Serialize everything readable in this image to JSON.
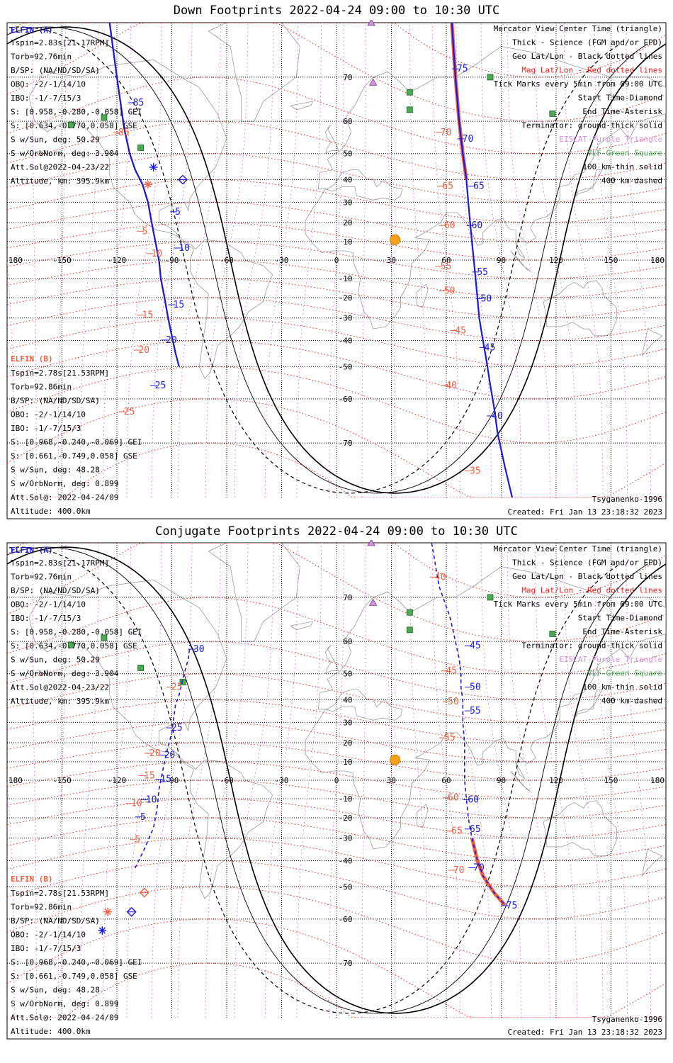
{
  "panels": [
    {
      "title": "Down Footprints 2022-04-24 09:00 to 10:30 UTC",
      "elfin_a": {
        "header": "ELFIN (A)",
        "lines": [
          "Tspin=2.83s[21.17RPM]",
          "Torb=92.76min",
          "B/SP: (NA/ND/SD/SA)",
          "OBO: -2/-1/14/10",
          "IBO: -1/-7/15/3",
          "S: [0.958,-0.280,-0.058] GEI",
          "S: [0.634,-0.770,0.058] GSE",
          "S w/Sun, deg: 50.29",
          "S w/OrbNorm, deg: 3.904",
          "Att.Sol@2022-04-23/22",
          "Altitude, km: 395.9km"
        ]
      },
      "elfin_b": {
        "header": "ELFIN (B)",
        "lines": [
          "Tspin=2.78s[21.53RPM]",
          "Torb=92.86min",
          "B/SP: (NA/ND/SD/SA)",
          "OBO: -2/-1/14/10",
          "IBO: -1/-7/15/3",
          "S: [0.968,-0.240,-0.069] GEI",
          "S: [0.661,-0.749,0.058] GSE",
          "S w/Sun, deg: 48.28",
          "S w/OrbNorm, deg: 0.899",
          "Att.Sol@: 2022-04-24/09",
          "Altitude: 400.0km"
        ]
      },
      "legend": [
        {
          "text": "Mercator View Center Time (triangle)",
          "color": "#000000"
        },
        {
          "text": "Thick - Science (FGM and/or EPD)",
          "color": "#000000"
        },
        {
          "text": "Geo Lat/Lon - Black dotted lines",
          "color": "#000000"
        },
        {
          "text": "Mag Lat/Lon - Red dotted lines",
          "color": "#e8221f"
        },
        {
          "text": "Tick Marks every 5min from 09:00 UTC",
          "color": "#000000"
        },
        {
          "text": "Start Time-Diamond",
          "color": "#000000"
        },
        {
          "text": "End Time-Asterisk",
          "color": "#000000"
        },
        {
          "text": "Terminator: ground-thick solid",
          "color": "#000000"
        },
        {
          "text": "EISCAT-Purple Triangle",
          "color": "#d48fe0"
        },
        {
          "text": "VLF-Green Square",
          "color": "#4caa55"
        },
        {
          "text": "100 km-thin solid",
          "color": "#000000"
        },
        {
          "text": "400 km-dashed",
          "color": "#000000"
        }
      ],
      "model": "Tsyganenko-1996",
      "created": "Created: Fri Jan 13 23:18:32 2023",
      "track_a": {
        "points": [
          [
            -86,
            -50
          ],
          [
            -88,
            -45
          ],
          [
            -90,
            -38
          ],
          [
            -92,
            -30
          ],
          [
            -94,
            -20
          ],
          [
            -96,
            -10
          ],
          [
            -97,
            0
          ],
          [
            -99,
            10
          ],
          [
            -101,
            20
          ],
          [
            -103,
            30
          ],
          [
            -106,
            38
          ],
          [
            -110,
            44
          ],
          [
            -113,
            50
          ],
          [
            -116,
            58
          ],
          [
            -120,
            70
          ],
          [
            -124,
            80
          ]
        ],
        "labels": [
          [
            "5",
            -89,
            24
          ],
          [
            "10",
            -87,
            5
          ],
          [
            "15",
            -90,
            -25
          ],
          [
            "20",
            -94,
            -41
          ],
          [
            "25",
            -100,
            -57
          ],
          [
            "85",
            -112,
            64
          ]
        ],
        "color": "#1a1adb"
      },
      "track_b": {
        "points": [
          [
            -88,
            -45
          ],
          [
            -90,
            -38
          ],
          [
            -92,
            -30
          ],
          [
            -94,
            -20
          ],
          [
            -96,
            -10
          ],
          [
            -97,
            0
          ],
          [
            -99,
            10
          ],
          [
            -101,
            20
          ],
          [
            -103,
            30
          ],
          [
            -106,
            38
          ],
          [
            -110,
            44
          ],
          [
            -113,
            50
          ],
          [
            -116,
            58
          ],
          [
            -120,
            70
          ],
          [
            -124,
            80
          ]
        ],
        "labels": [
          [
            "5",
            -107,
            14
          ],
          [
            "10",
            -102,
            2
          ],
          [
            "15",
            -107,
            -30
          ],
          [
            "20",
            -109,
            -45
          ],
          [
            "25",
            -117,
            -64
          ],
          [
            "85",
            -120,
            56
          ]
        ],
        "color": "#f06040"
      },
      "track_a2": {
        "points": [
          [
            63,
            80
          ],
          [
            65,
            70
          ],
          [
            67,
            60
          ],
          [
            69,
            50
          ],
          [
            71,
            40
          ],
          [
            72,
            30
          ],
          [
            73,
            20
          ],
          [
            74,
            10
          ],
          [
            75,
            0
          ],
          [
            76,
            -10
          ],
          [
            77,
            -20
          ],
          [
            78,
            -30
          ],
          [
            80,
            -40
          ],
          [
            82,
            -48
          ],
          [
            84,
            -56
          ],
          [
            86,
            -62
          ],
          [
            88,
            -68
          ],
          [
            92,
            -74
          ],
          [
            96,
            -78
          ]
        ],
        "labels": [
          [
            "75",
            65,
            71
          ],
          [
            "70",
            68,
            54
          ],
          [
            "65",
            74,
            36
          ],
          [
            "60",
            73,
            17
          ],
          [
            "55",
            76,
            -8
          ],
          [
            "50",
            78,
            -22
          ],
          [
            "45",
            80,
            -44
          ],
          [
            "40",
            84,
            -65
          ]
        ],
        "color": "#1a1adb"
      },
      "track_b2": {
        "labels": [
          [
            "70",
            56,
            56
          ],
          [
            "65",
            57,
            36
          ],
          [
            "60",
            58,
            17
          ],
          [
            "55",
            56,
            -5
          ],
          [
            "50",
            58,
            -18
          ],
          [
            "45",
            64,
            -37
          ],
          [
            "40",
            59,
            -57
          ],
          [
            "35",
            72,
            -75
          ]
        ],
        "color": "#f06040"
      },
      "sun": [
        32,
        11
      ],
      "vlf": [
        [
          -127,
          61
        ],
        [
          -145,
          59
        ],
        [
          -107,
          52
        ],
        [
          84,
          70
        ],
        [
          40,
          67
        ],
        [
          40,
          63
        ],
        [
          118,
          62
        ]
      ],
      "eiscat": [
        [
          19,
          80
        ],
        [
          20,
          69
        ]
      ],
      "start_a": [
        -84,
        40
      ],
      "end_a": [
        -100,
        45
      ],
      "end_b": [
        -103,
        38
      ]
    },
    {
      "title": "Conjugate Footprints 2022-04-24 09:00 to 10:30 UTC",
      "elfin_a": {
        "header": "ELFIN (A)",
        "lines": [
          "Tspin=2.83s[21.17RPM]",
          "Torb=92.76min",
          "B/SP: (NA/ND/SD/SA)",
          "OBO: -2/-1/14/10",
          "IBO: -1/-7/15/3",
          "S: [0.958,-0.280,-0.058] GEI",
          "S: [0.634,-0.770,0.058] GSE",
          "S w/Sun, deg: 50.29",
          "S w/OrbNorm, deg: 3.904",
          "Att.Sol@2022-04-23/22",
          "Altitude, km: 395.9km"
        ]
      },
      "elfin_b": {
        "header": "ELFIN (B)",
        "lines": [
          "Tspin=2.78s[21.53RPM]",
          "Torb=92.86min",
          "B/SP: (NA/ND/SD/SA)",
          "OBO: -2/-1/14/10",
          "IBO: -1/-7/15/3",
          "S: [0.968,-0.240,-0.069] GEI",
          "S: [0.661,-0.749,0.058] GSE",
          "S w/Sun, deg: 48.28",
          "S w/OrbNorm, deg: 0.899",
          "Att.Sol@: 2022-04-24/09",
          "Altitude: 400.0km"
        ]
      },
      "legend": [
        {
          "text": "Mercator View Center Time (triangle)",
          "color": "#000000"
        },
        {
          "text": "Thick - Science (FGM and/or EPD)",
          "color": "#000000"
        },
        {
          "text": "Geo Lat/Lon - Black dotted lines",
          "color": "#000000"
        },
        {
          "text": "Mag Lat/Lon - Red dotted lines",
          "color": "#e8221f"
        },
        {
          "text": "Tick Marks every 5min from 09:00 UTC",
          "color": "#000000"
        },
        {
          "text": "Start Time-Diamond",
          "color": "#000000"
        },
        {
          "text": "End Time-Asterisk",
          "color": "#000000"
        },
        {
          "text": "Terminator: ground-thick solid",
          "color": "#000000"
        },
        {
          "text": "EISCAT-Purple Triangle",
          "color": "#d48fe0"
        },
        {
          "text": "VLF-Green Square",
          "color": "#4caa55"
        },
        {
          "text": "100 km-thin solid",
          "color": "#000000"
        },
        {
          "text": "400 km-dashed",
          "color": "#000000"
        }
      ],
      "model": "Tsyganenko-1996",
      "created": "Created: Fri Jan 13 23:18:32 2023",
      "track_a": {
        "points": [
          [
            -110,
            -43
          ],
          [
            -105,
            -35
          ],
          [
            -100,
            -25
          ],
          [
            -98,
            -15
          ],
          [
            -97,
            -5
          ],
          [
            -96,
            0
          ],
          [
            -95,
            5
          ],
          [
            -94,
            10
          ],
          [
            -92,
            18
          ],
          [
            -90,
            25
          ],
          [
            -89,
            32
          ],
          [
            -88,
            38
          ],
          [
            -86,
            42
          ],
          [
            -84,
            48
          ],
          [
            -81,
            55
          ],
          [
            -80,
            59
          ]
        ],
        "labels": [
          [
            "5",
            -108,
            -21
          ],
          [
            "10",
            -105,
            -12
          ],
          [
            "15",
            -97,
            -1
          ],
          [
            "20",
            -95,
            12
          ],
          [
            "25",
            -91,
            26
          ],
          [
            "30",
            -79,
            57
          ]
        ],
        "color": "#1a1adb"
      },
      "track_b": {
        "labels": [
          [
            "5",
            -111,
            -32
          ],
          [
            "10",
            -113,
            -14
          ],
          [
            "15",
            -106,
            1
          ],
          [
            "20",
            -103,
            13
          ],
          [
            "25",
            -91,
            44
          ]
        ],
        "color": "#f06040"
      },
      "track_a2": {
        "points": [
          [
            52,
            78
          ],
          [
            56,
            72
          ],
          [
            62,
            66
          ],
          [
            65,
            60
          ],
          [
            67,
            55
          ],
          [
            68,
            50
          ],
          [
            68,
            45
          ],
          [
            69,
            40
          ],
          [
            69,
            30
          ],
          [
            70,
            20
          ],
          [
            70,
            10
          ],
          [
            70,
            0
          ],
          [
            71,
            -10
          ],
          [
            72,
            -20
          ],
          [
            74,
            -30
          ],
          [
            77,
            -40
          ],
          [
            80,
            -46
          ],
          [
            86,
            -52
          ],
          [
            92,
            -56
          ]
        ],
        "labels": [
          [
            "45",
            72,
            58
          ],
          [
            "50",
            72,
            44
          ],
          [
            "55",
            72,
            34
          ],
          [
            "60",
            71,
            -12
          ],
          [
            "65",
            72,
            -27
          ],
          [
            "70",
            74,
            -44
          ],
          [
            "75",
            92,
            -57
          ]
        ],
        "color": "#1a1adb"
      },
      "track_b2": {
        "labels": [
          [
            "40",
            53,
            73
          ],
          [
            "45",
            59,
            50
          ],
          [
            "50",
            60,
            38
          ],
          [
            "55",
            58,
            21
          ],
          [
            "60",
            60,
            -11
          ],
          [
            "65",
            62,
            -28
          ],
          [
            "70",
            63,
            -45
          ]
        ],
        "color": "#f06040"
      },
      "sun": [
        32,
        11
      ],
      "vlf": [
        [
          -127,
          61
        ],
        [
          -145,
          59
        ],
        [
          -107,
          52
        ],
        [
          84,
          70
        ],
        [
          40,
          67
        ],
        [
          40,
          63
        ],
        [
          118,
          62
        ],
        [
          -84,
          47
        ]
      ],
      "eiscat": [
        [
          19,
          80
        ],
        [
          20,
          69
        ]
      ],
      "start_a": [
        -112,
        -58
      ],
      "start_b": [
        -105,
        -52
      ],
      "end_a": [
        -128,
        -63
      ],
      "end_b": [
        -125,
        -58
      ]
    }
  ],
  "axes": {
    "lon_ticks": [
      "180",
      "-150",
      "-120",
      "-90",
      "-60",
      "-30",
      "0",
      "30",
      "60",
      "90",
      "120",
      "150",
      "180"
    ],
    "lat_ticks": [
      "70",
      "60",
      "50",
      "40",
      "30",
      "20",
      "10",
      "-10",
      "-20",
      "-30",
      "-40",
      "-50",
      "-60",
      "-70"
    ]
  },
  "colors": {
    "blue": "#1a1adb",
    "orange": "#f06040",
    "mag_grid": "#e8221f",
    "geo_grid": "#000000",
    "purple": "#d48fe0",
    "green": "#4caa55",
    "sun": "#f5a11a",
    "coast": "#9a9a9a"
  }
}
